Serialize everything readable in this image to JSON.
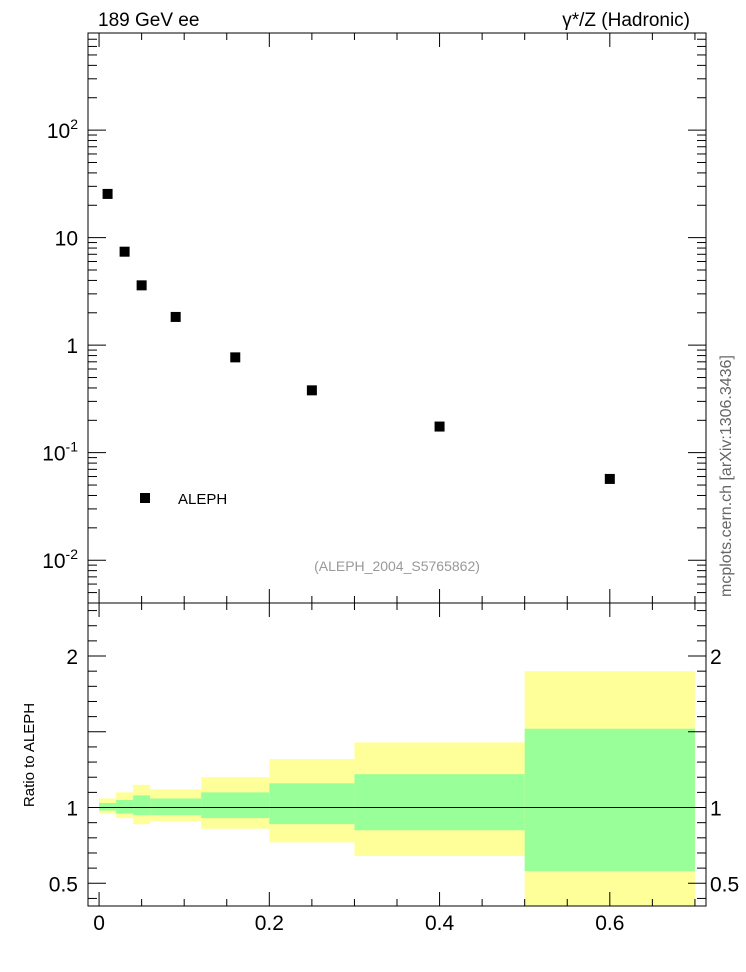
{
  "header": {
    "left_label": "189 GeV ee",
    "right_label": "γ*/Z (Hadronic)"
  },
  "side_label": "mcplots.cern.ch [arXiv:1306.3436]",
  "analysis_id": "(ALEPH_2004_S5765862)",
  "chart_data": [
    {
      "type": "scatter",
      "xlim": [
        -0.013,
        0.713
      ],
      "ylim": [
        0.004,
        800
      ],
      "yscale": "log",
      "ytick_labels": [
        "10^-2",
        "10^-1",
        "1",
        "10",
        "10^2"
      ],
      "legend": {
        "position": "bottom-left",
        "entries": [
          "ALEPH"
        ]
      },
      "series": [
        {
          "name": "ALEPH",
          "color": "#000000",
          "x": [
            0.01,
            0.03,
            0.05,
            0.09,
            0.16,
            0.25,
            0.4,
            0.6
          ],
          "y": [
            25.5,
            7.4,
            3.6,
            1.83,
            0.77,
            0.38,
            0.175,
            0.057
          ]
        }
      ]
    },
    {
      "type": "area",
      "ylabel": "Ratio to ALEPH",
      "xlim": [
        -0.013,
        0.713
      ],
      "ylim": [
        0.35,
        2.35
      ],
      "xtick_labels": [
        "0",
        "0.2",
        "0.4",
        "0.6"
      ],
      "ytick_labels": [
        "0.5",
        "1",
        "2"
      ],
      "reference_line": 1.0,
      "colors": {
        "inner_band": "#99ff99",
        "outer_band": "#ffff99"
      },
      "bins": [
        {
          "x_low": 0.0,
          "x_high": 0.02,
          "inner": [
            0.98,
            1.03
          ],
          "outer": [
            0.96,
            1.06
          ]
        },
        {
          "x_low": 0.02,
          "x_high": 0.04,
          "inner": [
            0.96,
            1.05
          ],
          "outer": [
            0.93,
            1.1
          ]
        },
        {
          "x_low": 0.04,
          "x_high": 0.06,
          "inner": [
            0.95,
            1.08
          ],
          "outer": [
            0.89,
            1.15
          ]
        },
        {
          "x_low": 0.06,
          "x_high": 0.12,
          "inner": [
            0.95,
            1.06
          ],
          "outer": [
            0.91,
            1.12
          ]
        },
        {
          "x_low": 0.12,
          "x_high": 0.2,
          "inner": [
            0.93,
            1.1
          ],
          "outer": [
            0.86,
            1.2
          ]
        },
        {
          "x_low": 0.2,
          "x_high": 0.3,
          "inner": [
            0.89,
            1.16
          ],
          "outer": [
            0.77,
            1.32
          ]
        },
        {
          "x_low": 0.3,
          "x_high": 0.5,
          "inner": [
            0.85,
            1.22
          ],
          "outer": [
            0.68,
            1.43
          ]
        },
        {
          "x_low": 0.5,
          "x_high": 0.7,
          "inner": [
            0.58,
            1.52
          ],
          "outer": [
            0.35,
            1.9
          ]
        }
      ]
    }
  ]
}
